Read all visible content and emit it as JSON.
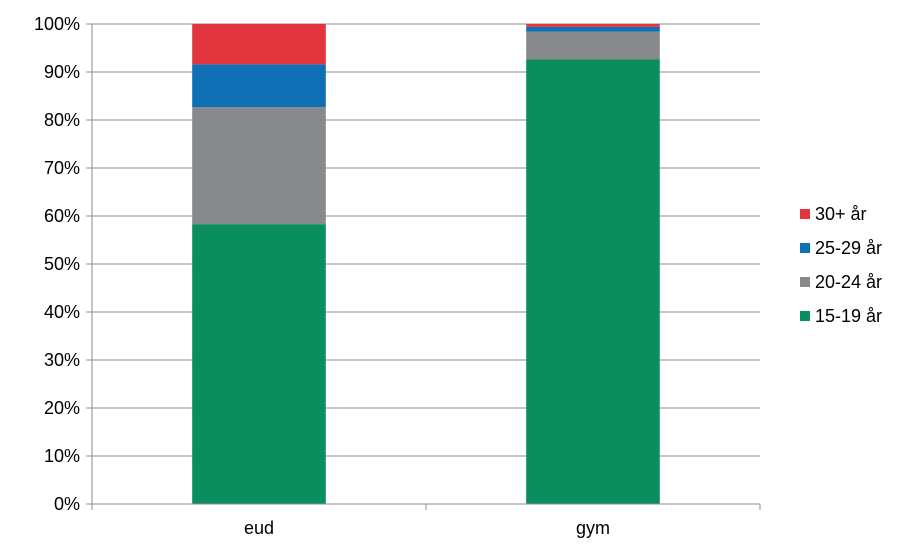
{
  "chart_data": {
    "type": "bar",
    "stacked": true,
    "percent": true,
    "categories": [
      "eud",
      "gym"
    ],
    "series": [
      {
        "name": "15-19 år",
        "values": [
          58.3,
          92.6
        ],
        "color": "#0A8E5E"
      },
      {
        "name": "20-24 år",
        "values": [
          24.4,
          5.8
        ],
        "color": "#878A8C"
      },
      {
        "name": "25-29 år",
        "values": [
          8.9,
          1.0
        ],
        "color": "#0F70B5"
      },
      {
        "name": "30+ år",
        "values": [
          8.4,
          0.6
        ],
        "color": "#E3353E"
      }
    ],
    "ylim": [
      0,
      100
    ],
    "y_ticks": [
      "0%",
      "10%",
      "20%",
      "30%",
      "40%",
      "50%",
      "60%",
      "70%",
      "80%",
      "90%",
      "100%"
    ],
    "grid": true,
    "legend_position": "right",
    "legend_order": [
      "30+ år",
      "25-29 år",
      "20-24 år",
      "15-19 år"
    ]
  }
}
